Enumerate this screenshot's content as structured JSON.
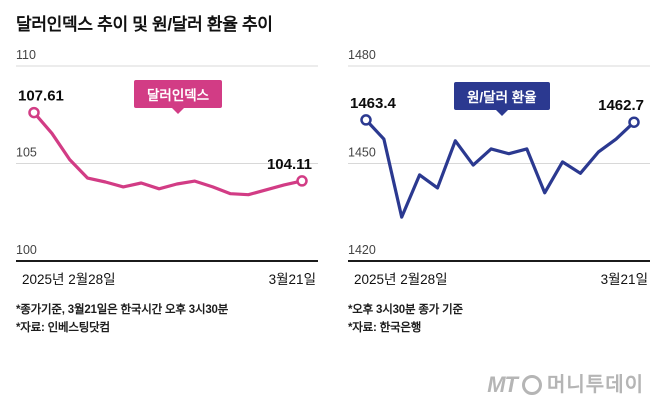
{
  "page": {
    "title": "달러인덱스 추이 및 원/달러 환율 추이"
  },
  "logo": {
    "prefix": "MT",
    "name": "머니투데이"
  },
  "chart_data": [
    {
      "type": "line",
      "name": "dollar-index",
      "badge": "달러인덱스",
      "color": "#d23c85",
      "ylim": [
        100,
        110
      ],
      "yticks": [
        110,
        105,
        100
      ],
      "x_start_label": "2025년 2월28일",
      "x_end_label": "3월21일",
      "start_value_label": "107.61",
      "end_value_label": "104.11",
      "values": [
        107.61,
        106.55,
        105.2,
        104.25,
        104.05,
        103.8,
        104.0,
        103.7,
        103.95,
        104.1,
        103.8,
        103.45,
        103.4,
        103.65,
        103.9,
        104.11
      ],
      "footnotes": [
        "*종가기준, 3월21일은 한국시간 오후 3시30분",
        "*자료: 인베스팅닷컴"
      ]
    },
    {
      "type": "line",
      "name": "usd-krw-rate",
      "badge": "원/달러 환율",
      "color": "#2b3990",
      "ylim": [
        1420,
        1480
      ],
      "yticks": [
        1480,
        1450,
        1420
      ],
      "x_start_label": "2025년 2월28일",
      "x_end_label": "3월21일",
      "start_value_label": "1463.4",
      "end_value_label": "1462.7",
      "values": [
        1463.4,
        1457.5,
        1433.5,
        1446.5,
        1442.5,
        1457.0,
        1449.5,
        1454.5,
        1453.0,
        1454.5,
        1441.0,
        1450.5,
        1447.0,
        1453.5,
        1457.5,
        1462.7
      ],
      "footnotes": [
        "*오후 3시30분 종가 기준",
        "*자료: 한국은행"
      ]
    }
  ]
}
